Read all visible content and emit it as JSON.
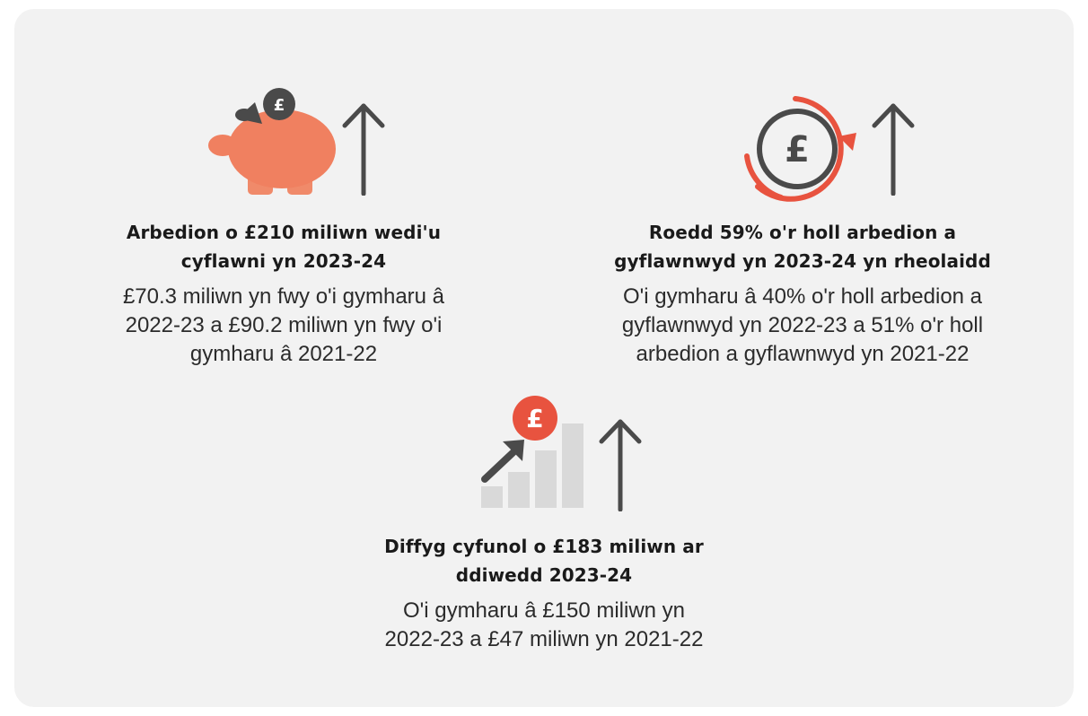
{
  "blocks": [
    {
      "icon": "piggy-bank-icon",
      "title_lines": [
        "Arbedion o £210 miliwn wedi'u",
        "cyflawni yn 2023-24"
      ],
      "desc_lines": [
        "£70.3 miliwn yn fwy o'i gymharu â",
        "2022-23 a £90.2 miliwn yn fwy o'i",
        "gymharu â 2021-22"
      ]
    },
    {
      "icon": "recurring-pound-icon",
      "title_lines": [
        "Roedd 59% o'r holl arbedion a",
        "gyflawnwyd yn 2023-24 yn rheolaidd"
      ],
      "desc_lines": [
        "O'i gymharu â 40% o'r holl arbedion a",
        "gyflawnwyd yn 2022-23 a 51% o'r holl",
        "arbedion a gyflawnwyd yn 2021-22"
      ]
    },
    {
      "icon": "rising-bars-pound-icon",
      "title_lines": [
        "Diffyg cyfunol o £183 miliwn ar",
        "ddiwedd 2023-24"
      ],
      "desc_lines": [
        "O'i gymharu â £150 miliwn yn",
        "2022-23 a £47 miliwn yn 2021-22"
      ]
    }
  ],
  "coin_symbol": "£",
  "colors": {
    "panel": "#f2f2f2",
    "accent_orange": "#f08060",
    "accent_red": "#e8533f",
    "dark_gray": "#4a4a4a",
    "light_gray": "#d9d9d9"
  }
}
